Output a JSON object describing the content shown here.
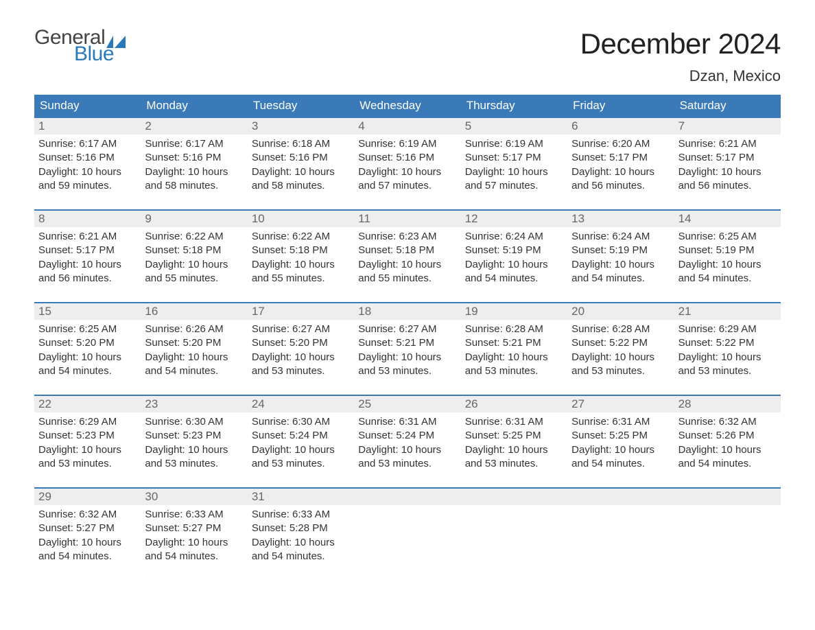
{
  "logo": {
    "text_general": "General",
    "text_blue": "Blue",
    "flag_color": "#2a7ab9"
  },
  "header": {
    "month_title": "December 2024",
    "location": "Dzan, Mexico"
  },
  "colors": {
    "header_bg": "#3a7ab8",
    "header_text": "#ffffff",
    "row_border": "#3a7ab8",
    "daynum_bg": "#eeeeee",
    "daynum_text": "#666666",
    "body_text": "#333333",
    "background": "#ffffff"
  },
  "typography": {
    "title_fontsize": 42,
    "location_fontsize": 22,
    "weekday_fontsize": 17,
    "daynum_fontsize": 17,
    "body_fontsize": 15
  },
  "calendar": {
    "weekdays": [
      "Sunday",
      "Monday",
      "Tuesday",
      "Wednesday",
      "Thursday",
      "Friday",
      "Saturday"
    ],
    "weeks": [
      [
        {
          "n": "1",
          "sunrise": "Sunrise: 6:17 AM",
          "sunset": "Sunset: 5:16 PM",
          "day1": "Daylight: 10 hours",
          "day2": "and 59 minutes."
        },
        {
          "n": "2",
          "sunrise": "Sunrise: 6:17 AM",
          "sunset": "Sunset: 5:16 PM",
          "day1": "Daylight: 10 hours",
          "day2": "and 58 minutes."
        },
        {
          "n": "3",
          "sunrise": "Sunrise: 6:18 AM",
          "sunset": "Sunset: 5:16 PM",
          "day1": "Daylight: 10 hours",
          "day2": "and 58 minutes."
        },
        {
          "n": "4",
          "sunrise": "Sunrise: 6:19 AM",
          "sunset": "Sunset: 5:16 PM",
          "day1": "Daylight: 10 hours",
          "day2": "and 57 minutes."
        },
        {
          "n": "5",
          "sunrise": "Sunrise: 6:19 AM",
          "sunset": "Sunset: 5:17 PM",
          "day1": "Daylight: 10 hours",
          "day2": "and 57 minutes."
        },
        {
          "n": "6",
          "sunrise": "Sunrise: 6:20 AM",
          "sunset": "Sunset: 5:17 PM",
          "day1": "Daylight: 10 hours",
          "day2": "and 56 minutes."
        },
        {
          "n": "7",
          "sunrise": "Sunrise: 6:21 AM",
          "sunset": "Sunset: 5:17 PM",
          "day1": "Daylight: 10 hours",
          "day2": "and 56 minutes."
        }
      ],
      [
        {
          "n": "8",
          "sunrise": "Sunrise: 6:21 AM",
          "sunset": "Sunset: 5:17 PM",
          "day1": "Daylight: 10 hours",
          "day2": "and 56 minutes."
        },
        {
          "n": "9",
          "sunrise": "Sunrise: 6:22 AM",
          "sunset": "Sunset: 5:18 PM",
          "day1": "Daylight: 10 hours",
          "day2": "and 55 minutes."
        },
        {
          "n": "10",
          "sunrise": "Sunrise: 6:22 AM",
          "sunset": "Sunset: 5:18 PM",
          "day1": "Daylight: 10 hours",
          "day2": "and 55 minutes."
        },
        {
          "n": "11",
          "sunrise": "Sunrise: 6:23 AM",
          "sunset": "Sunset: 5:18 PM",
          "day1": "Daylight: 10 hours",
          "day2": "and 55 minutes."
        },
        {
          "n": "12",
          "sunrise": "Sunrise: 6:24 AM",
          "sunset": "Sunset: 5:19 PM",
          "day1": "Daylight: 10 hours",
          "day2": "and 54 minutes."
        },
        {
          "n": "13",
          "sunrise": "Sunrise: 6:24 AM",
          "sunset": "Sunset: 5:19 PM",
          "day1": "Daylight: 10 hours",
          "day2": "and 54 minutes."
        },
        {
          "n": "14",
          "sunrise": "Sunrise: 6:25 AM",
          "sunset": "Sunset: 5:19 PM",
          "day1": "Daylight: 10 hours",
          "day2": "and 54 minutes."
        }
      ],
      [
        {
          "n": "15",
          "sunrise": "Sunrise: 6:25 AM",
          "sunset": "Sunset: 5:20 PM",
          "day1": "Daylight: 10 hours",
          "day2": "and 54 minutes."
        },
        {
          "n": "16",
          "sunrise": "Sunrise: 6:26 AM",
          "sunset": "Sunset: 5:20 PM",
          "day1": "Daylight: 10 hours",
          "day2": "and 54 minutes."
        },
        {
          "n": "17",
          "sunrise": "Sunrise: 6:27 AM",
          "sunset": "Sunset: 5:20 PM",
          "day1": "Daylight: 10 hours",
          "day2": "and 53 minutes."
        },
        {
          "n": "18",
          "sunrise": "Sunrise: 6:27 AM",
          "sunset": "Sunset: 5:21 PM",
          "day1": "Daylight: 10 hours",
          "day2": "and 53 minutes."
        },
        {
          "n": "19",
          "sunrise": "Sunrise: 6:28 AM",
          "sunset": "Sunset: 5:21 PM",
          "day1": "Daylight: 10 hours",
          "day2": "and 53 minutes."
        },
        {
          "n": "20",
          "sunrise": "Sunrise: 6:28 AM",
          "sunset": "Sunset: 5:22 PM",
          "day1": "Daylight: 10 hours",
          "day2": "and 53 minutes."
        },
        {
          "n": "21",
          "sunrise": "Sunrise: 6:29 AM",
          "sunset": "Sunset: 5:22 PM",
          "day1": "Daylight: 10 hours",
          "day2": "and 53 minutes."
        }
      ],
      [
        {
          "n": "22",
          "sunrise": "Sunrise: 6:29 AM",
          "sunset": "Sunset: 5:23 PM",
          "day1": "Daylight: 10 hours",
          "day2": "and 53 minutes."
        },
        {
          "n": "23",
          "sunrise": "Sunrise: 6:30 AM",
          "sunset": "Sunset: 5:23 PM",
          "day1": "Daylight: 10 hours",
          "day2": "and 53 minutes."
        },
        {
          "n": "24",
          "sunrise": "Sunrise: 6:30 AM",
          "sunset": "Sunset: 5:24 PM",
          "day1": "Daylight: 10 hours",
          "day2": "and 53 minutes."
        },
        {
          "n": "25",
          "sunrise": "Sunrise: 6:31 AM",
          "sunset": "Sunset: 5:24 PM",
          "day1": "Daylight: 10 hours",
          "day2": "and 53 minutes."
        },
        {
          "n": "26",
          "sunrise": "Sunrise: 6:31 AM",
          "sunset": "Sunset: 5:25 PM",
          "day1": "Daylight: 10 hours",
          "day2": "and 53 minutes."
        },
        {
          "n": "27",
          "sunrise": "Sunrise: 6:31 AM",
          "sunset": "Sunset: 5:25 PM",
          "day1": "Daylight: 10 hours",
          "day2": "and 54 minutes."
        },
        {
          "n": "28",
          "sunrise": "Sunrise: 6:32 AM",
          "sunset": "Sunset: 5:26 PM",
          "day1": "Daylight: 10 hours",
          "day2": "and 54 minutes."
        }
      ],
      [
        {
          "n": "29",
          "sunrise": "Sunrise: 6:32 AM",
          "sunset": "Sunset: 5:27 PM",
          "day1": "Daylight: 10 hours",
          "day2": "and 54 minutes."
        },
        {
          "n": "30",
          "sunrise": "Sunrise: 6:33 AM",
          "sunset": "Sunset: 5:27 PM",
          "day1": "Daylight: 10 hours",
          "day2": "and 54 minutes."
        },
        {
          "n": "31",
          "sunrise": "Sunrise: 6:33 AM",
          "sunset": "Sunset: 5:28 PM",
          "day1": "Daylight: 10 hours",
          "day2": "and 54 minutes."
        },
        null,
        null,
        null,
        null
      ]
    ]
  }
}
